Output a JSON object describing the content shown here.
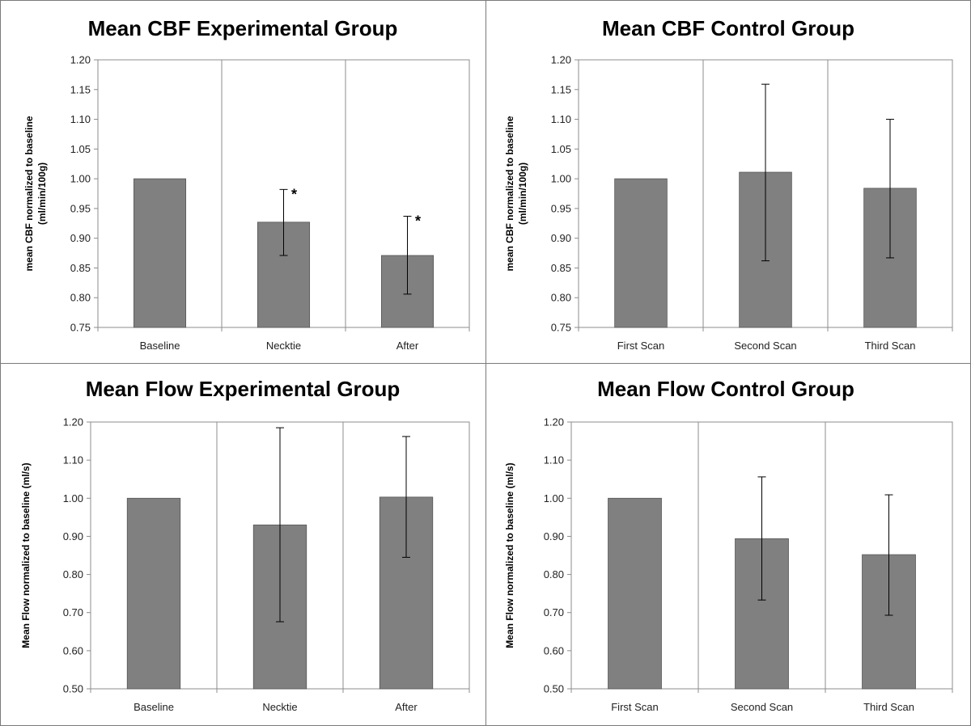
{
  "chart_data": [
    {
      "type": "bar",
      "title": "Mean CBF Experimental Group",
      "ylabel_lines": [
        "mean CBF normalized to baseline",
        "(ml/min/100g)"
      ],
      "categories": [
        "Baseline",
        "Necktie",
        "After"
      ],
      "values": [
        1.0,
        0.927,
        0.871
      ],
      "error_low": [
        1.0,
        0.871,
        0.806
      ],
      "error_high": [
        1.0,
        0.982,
        0.937
      ],
      "annotations": [
        "",
        "*",
        "*"
      ],
      "ylim": [
        0.75,
        1.2
      ],
      "yticks": [
        "0.75",
        "0.80",
        "0.85",
        "0.90",
        "0.95",
        "1.00",
        "1.05",
        "1.10",
        "1.15",
        "1.20"
      ],
      "grid": "vertical",
      "bar_color": "#808080"
    },
    {
      "type": "bar",
      "title": "Mean CBF Control Group",
      "ylabel_lines": [
        "mean CBF normalized to baseline",
        "(ml/min/100g)"
      ],
      "categories": [
        "First Scan",
        "Second Scan",
        "Third Scan"
      ],
      "values": [
        1.0,
        1.011,
        0.984
      ],
      "error_low": [
        1.0,
        0.862,
        0.867
      ],
      "error_high": [
        1.0,
        1.159,
        1.1
      ],
      "annotations": [
        "",
        "",
        ""
      ],
      "ylim": [
        0.75,
        1.2
      ],
      "yticks": [
        "0.75",
        "0.80",
        "0.85",
        "0.90",
        "0.95",
        "1.00",
        "1.05",
        "1.10",
        "1.15",
        "1.20"
      ],
      "grid": "vertical",
      "bar_color": "#808080"
    },
    {
      "type": "bar",
      "title": "Mean Flow Experimental Group",
      "ylabel_lines": [
        "Mean Flow normalized to baseline  (ml/s)"
      ],
      "categories": [
        "Baseline",
        "Necktie",
        "After"
      ],
      "values": [
        1.0,
        0.93,
        1.003
      ],
      "error_low": [
        1.0,
        0.676,
        0.845
      ],
      "error_high": [
        1.0,
        1.185,
        1.162
      ],
      "annotations": [
        "",
        "",
        ""
      ],
      "ylim": [
        0.5,
        1.2
      ],
      "yticks": [
        "0.50",
        "0.60",
        "0.70",
        "0.80",
        "0.90",
        "1.00",
        "1.10",
        "1.20"
      ],
      "grid": "vertical",
      "bar_color": "#808080"
    },
    {
      "type": "bar",
      "title": "Mean Flow Control Group",
      "ylabel_lines": [
        "Mean Flow normalized to baseline  (ml/s)"
      ],
      "categories": [
        "First Scan",
        "Second Scan",
        "Third Scan"
      ],
      "values": [
        1.0,
        0.894,
        0.852
      ],
      "error_low": [
        1.0,
        0.733,
        0.693
      ],
      "error_high": [
        1.0,
        1.056,
        1.009
      ],
      "annotations": [
        "",
        "",
        ""
      ],
      "ylim": [
        0.5,
        1.2
      ],
      "yticks": [
        "0.50",
        "0.60",
        "0.70",
        "0.80",
        "0.90",
        "1.00",
        "1.10",
        "1.20"
      ],
      "grid": "vertical",
      "bar_color": "#808080"
    }
  ]
}
